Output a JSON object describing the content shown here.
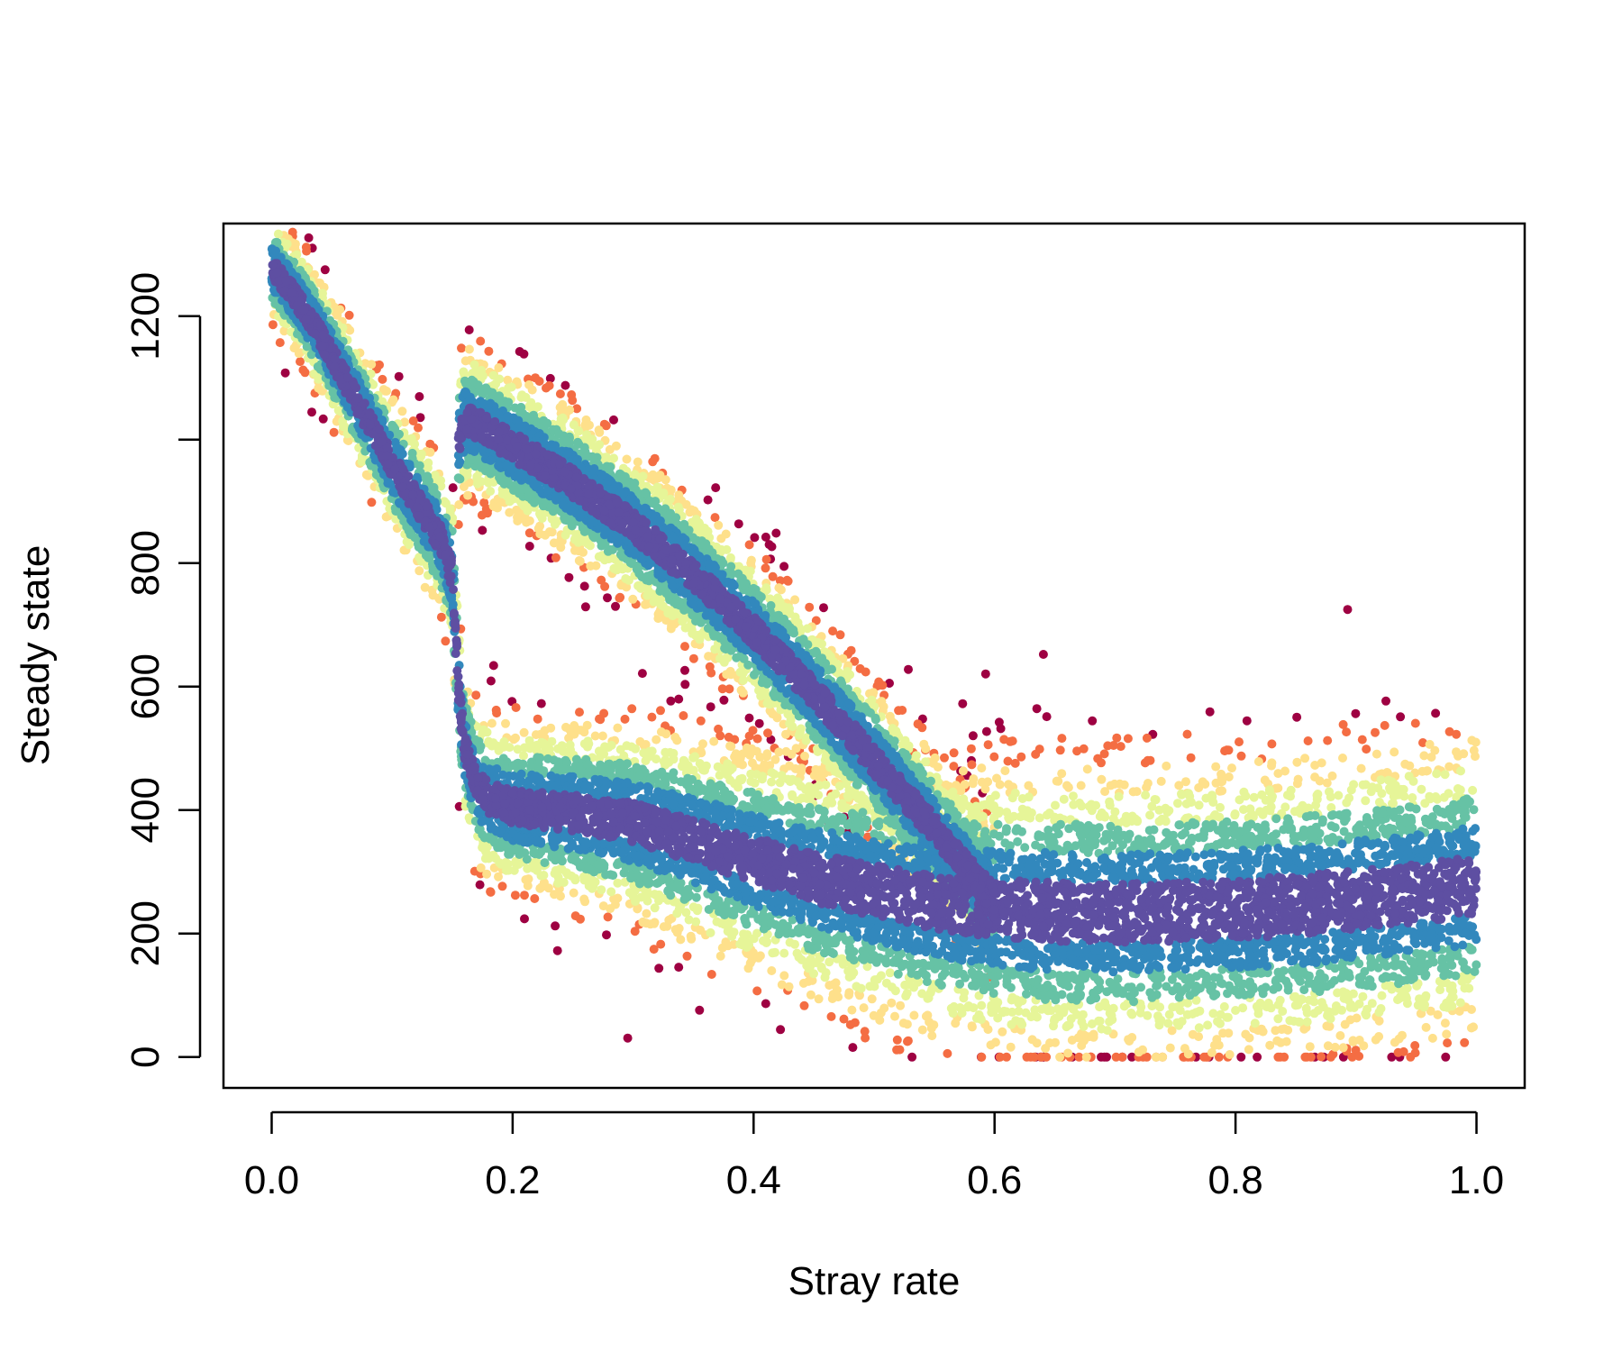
{
  "chart_data": {
    "type": "scatter",
    "title": "",
    "xlabel": "Stray rate",
    "ylabel": "Steady state",
    "xlim": [
      -0.04,
      1.04
    ],
    "ylim": [
      -50,
      1350
    ],
    "xticks": [
      0.0,
      0.2,
      0.4,
      0.6,
      0.8,
      1.0
    ],
    "xtick_labels": [
      "0.0",
      "0.2",
      "0.4",
      "0.6",
      "0.8",
      "1.0"
    ],
    "yticks": [
      0,
      200,
      400,
      600,
      800,
      1000,
      1200
    ],
    "ytick_labels": [
      "0",
      "200",
      "400",
      "600",
      "800",
      "",
      "1200"
    ],
    "grid": false,
    "legend": "none",
    "color_scale": "Spectral (density: dark purple = high density, red = low density)",
    "colors": {
      "high_density": "#5e4fa2",
      "mid_high": "#3288bd",
      "mid": "#66c2a5",
      "mid_low": "#e6f598",
      "low_mid": "#fee08b",
      "low": "#f46d43",
      "lowest": "#9e0142"
    },
    "series": [
      {
        "x": [
          0.0,
          0.02,
          0.04,
          0.06,
          0.08,
          0.1,
          0.12,
          0.14,
          0.15,
          0.155,
          0.16,
          0.17,
          0.18,
          0.2,
          0.25,
          0.3,
          0.35,
          0.4,
          0.45,
          0.5,
          0.55,
          0.6,
          0.65,
          0.7,
          0.75,
          0.8,
          0.85,
          0.9,
          0.95,
          1.0
        ],
        "y": [
          1280,
          1230,
          1170,
          1100,
          1030,
          960,
          900,
          840,
          780,
          600,
          500,
          440,
          420,
          405,
          395,
          380,
          350,
          320,
          290,
          270,
          250,
          240,
          235,
          232,
          235,
          240,
          245,
          255,
          265,
          278
        ]
      },
      {
        "x": [
          0.155,
          0.16,
          0.17,
          0.2,
          0.25,
          0.3,
          0.35,
          0.4,
          0.45,
          0.5,
          0.55,
          0.58,
          0.6
        ],
        "y": [
          1000,
          1030,
          1025,
          990,
          930,
          860,
          780,
          690,
          590,
          480,
          370,
          300,
          255
        ]
      }
    ]
  }
}
